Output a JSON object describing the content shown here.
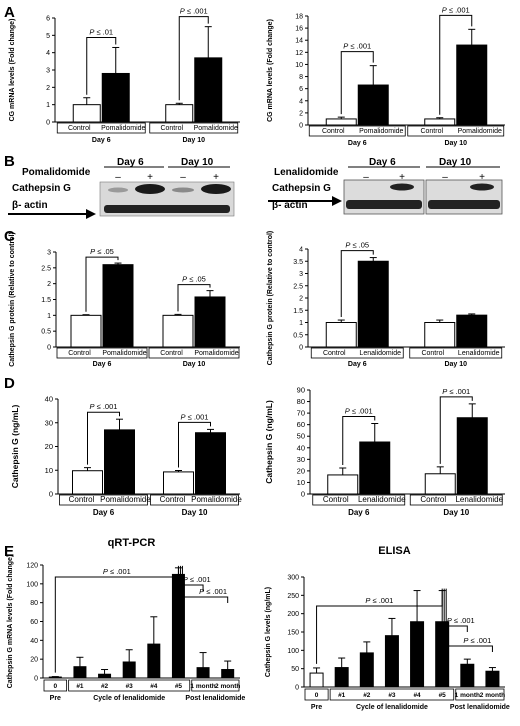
{
  "panel_letters": [
    "A",
    "B",
    "C",
    "D",
    "E"
  ],
  "figure": {
    "control_color": "#ffffff",
    "treated_color": "#000000",
    "line_color": "#000000"
  },
  "western": [
    {
      "drug_label": "Pomalidomide",
      "day_labels": [
        "Day 6",
        "Day 10"
      ],
      "lane_signs": [
        "–",
        "+",
        "–",
        "+"
      ],
      "bands": [
        "Cathepsin G",
        "β- actin"
      ]
    },
    {
      "drug_label": "Lenalidomide",
      "day_labels": [
        "Day 6",
        "Day 10"
      ],
      "lane_signs": [
        "–",
        "+",
        "–",
        "+"
      ],
      "bands": [
        "Cathepsin G",
        "β- actin"
      ]
    }
  ],
  "chart_data": [
    {
      "id": "A-left",
      "type": "bar",
      "ylabel": "CG mRNA levels (Fold change)",
      "ylim": [
        0,
        6
      ],
      "yticks": [
        0,
        1,
        2,
        3,
        4,
        5,
        6
      ],
      "groups": [
        "Day 6",
        "Day 10"
      ],
      "series": [
        {
          "name": "Control",
          "values": [
            1.0,
            1.0
          ],
          "errors": [
            0.4,
            0.08
          ]
        },
        {
          "name": "Pomalidomide",
          "values": [
            2.8,
            3.7
          ],
          "errors": [
            1.5,
            1.8
          ]
        }
      ],
      "series_labels": [
        "Control",
        "Pomalidomide"
      ],
      "pvalues": [
        "P ≤ .01",
        "P ≤ .001"
      ]
    },
    {
      "id": "A-right",
      "type": "bar",
      "ylabel": "CG mRNA levels (Fold change)",
      "ylim": [
        0,
        18
      ],
      "yticks": [
        0,
        2,
        4,
        6,
        8,
        10,
        12,
        14,
        16,
        18
      ],
      "groups": [
        "Day 6",
        "Day 10"
      ],
      "series": [
        {
          "name": "Control",
          "values": [
            1.0,
            1.0
          ],
          "errors": [
            0.3,
            0.2
          ]
        },
        {
          "name": "Pomalidomide",
          "values": [
            6.6,
            13.2
          ],
          "errors": [
            3.2,
            2.6
          ]
        }
      ],
      "series_labels": [
        "Control",
        "Pomalidomide"
      ],
      "pvalues": [
        "P ≤ .001",
        "P ≤ .001"
      ]
    },
    {
      "id": "C-left",
      "type": "bar",
      "ylabel": "Cathepsin G protein (Relative to control)",
      "ylim": [
        0,
        3
      ],
      "yticks": [
        0,
        0.5,
        1,
        1.5,
        2,
        2.5,
        3
      ],
      "groups": [
        "Day 6",
        "Day 10"
      ],
      "series": [
        {
          "name": "Control",
          "values": [
            1.0,
            1.0
          ],
          "errors": [
            0.02,
            0.03
          ]
        },
        {
          "name": "Pomalidomide",
          "values": [
            2.6,
            1.58
          ],
          "errors": [
            0.05,
            0.2
          ]
        }
      ],
      "series_labels": [
        "Control",
        "Pomalidomide"
      ],
      "pvalues": [
        "P ≤ .05",
        "P ≤ .05"
      ]
    },
    {
      "id": "C-right",
      "type": "bar",
      "ylabel": "Cathepsin G protein (Relative to control)",
      "ylim": [
        0,
        4
      ],
      "yticks": [
        0,
        0.5,
        1,
        1.5,
        2,
        2.5,
        3,
        3.5,
        4
      ],
      "groups": [
        "Day 6",
        "Day 10"
      ],
      "series": [
        {
          "name": "Control",
          "values": [
            1.0,
            1.0
          ],
          "errors": [
            0.1,
            0.1
          ]
        },
        {
          "name": "Lenalidomide",
          "values": [
            3.5,
            1.3
          ],
          "errors": [
            0.15,
            0.05
          ]
        }
      ],
      "series_labels": [
        "Control",
        "Lenalidomide"
      ],
      "pvalues": [
        "P ≤ .05"
      ]
    },
    {
      "id": "D-left",
      "type": "bar",
      "ylabel": "Cathepsin G (ng/mL)",
      "ylim": [
        0,
        40
      ],
      "yticks": [
        0,
        10,
        20,
        30,
        40
      ],
      "groups": [
        "Day 6",
        "Day 10"
      ],
      "series": [
        {
          "name": "Control",
          "values": [
            9.8,
            9.3
          ],
          "errors": [
            1.3,
            0.6
          ]
        },
        {
          "name": "Pomalidomide",
          "values": [
            27.0,
            25.8
          ],
          "errors": [
            4.5,
            1.4
          ]
        }
      ],
      "series_labels": [
        "Control",
        "Pomalidomide"
      ],
      "pvalues": [
        "P ≤ .001",
        "P ≤ .001"
      ]
    },
    {
      "id": "D-right",
      "type": "bar",
      "ylabel": "Cathepsin G (ng/mL)",
      "ylim": [
        0,
        90
      ],
      "yticks": [
        0,
        10,
        20,
        30,
        40,
        50,
        60,
        70,
        80,
        90
      ],
      "groups": [
        "Day 6",
        "Day 10"
      ],
      "series": [
        {
          "name": "Control",
          "values": [
            16.5,
            17.5
          ],
          "errors": [
            6.0,
            6.0
          ]
        },
        {
          "name": "Lenalidomide",
          "values": [
            45.0,
            66.0
          ],
          "errors": [
            16.0,
            12.0
          ]
        }
      ],
      "series_labels": [
        "Control",
        "Lenalidomide"
      ],
      "pvalues": [
        "P ≤ .001",
        "P ≤ .001"
      ]
    },
    {
      "id": "E-left",
      "type": "bar",
      "title": "qRT-PCR",
      "ylabel": "Cathepsin G mRNA levels (Fold change)",
      "ylim": [
        0,
        120
      ],
      "yticks": [
        0,
        20,
        40,
        60,
        80,
        100,
        120
      ],
      "categories": [
        "0",
        "#1",
        "#2",
        "#3",
        "#4",
        "#5",
        "1 month",
        "2 month"
      ],
      "values": [
        1,
        12,
        4,
        17,
        36,
        110,
        11,
        9
      ],
      "errors": [
        0.5,
        10,
        5,
        13,
        29,
        7,
        16,
        9
      ],
      "colors": [
        "#ffffff",
        "#000000",
        "#000000",
        "#000000",
        "#000000",
        "#000000",
        "#000000",
        "#000000"
      ],
      "group_labels": [
        "Pre",
        "Cycle of lenalidomide",
        "Post lenalidomide"
      ],
      "pvalues": [
        "P ≤ .001",
        "P ≤ .001",
        "P ≤ .001"
      ]
    },
    {
      "id": "E-right",
      "type": "bar",
      "title": "ELISA",
      "ylabel": "Cathepsin G levels (ng/mL)",
      "ylim": [
        0,
        300
      ],
      "yticks": [
        0,
        50,
        100,
        150,
        200,
        250,
        300
      ],
      "categories": [
        "0",
        "#1",
        "#2",
        "#3",
        "#4",
        "#5",
        "1 month",
        "2 month"
      ],
      "values": [
        38,
        53,
        93,
        140,
        178,
        178,
        62,
        43
      ],
      "errors": [
        14,
        26,
        30,
        47,
        85,
        85,
        14,
        10
      ],
      "colors": [
        "#ffffff",
        "#000000",
        "#000000",
        "#000000",
        "#000000",
        "#000000",
        "#000000",
        "#000000"
      ],
      "group_labels": [
        "Pre",
        "Cycle of lenalidomide",
        "Post lenalidomide"
      ],
      "pvalues": [
        "P ≤ .001",
        "P ≤ .001",
        "P ≤ .001"
      ]
    }
  ]
}
